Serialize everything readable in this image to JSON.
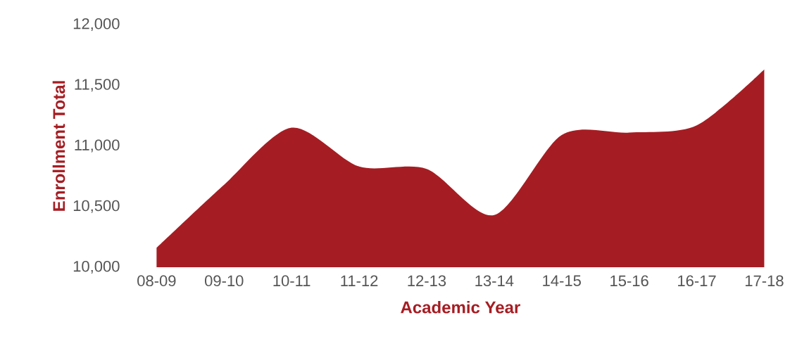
{
  "chart_data": {
    "type": "area",
    "xlabel": "Academic Year",
    "ylabel": "Enrollment Total",
    "categories": [
      "08-09",
      "09-10",
      "10-11",
      "11-12",
      "12-13",
      "13-14",
      "14-15",
      "15-16",
      "16-17",
      "17-18"
    ],
    "values": [
      10160,
      10680,
      11150,
      10830,
      10810,
      10430,
      11090,
      11110,
      11170,
      11630
    ],
    "color": "#a51d23",
    "ylim": [
      10000,
      12000
    ],
    "yticks": [
      {
        "value": 10000,
        "label": "10,000"
      },
      {
        "value": 10500,
        "label": "10,500"
      },
      {
        "value": 11000,
        "label": "11,000"
      },
      {
        "value": 11500,
        "label": "11,500"
      },
      {
        "value": 12000,
        "label": "12,000"
      }
    ]
  }
}
